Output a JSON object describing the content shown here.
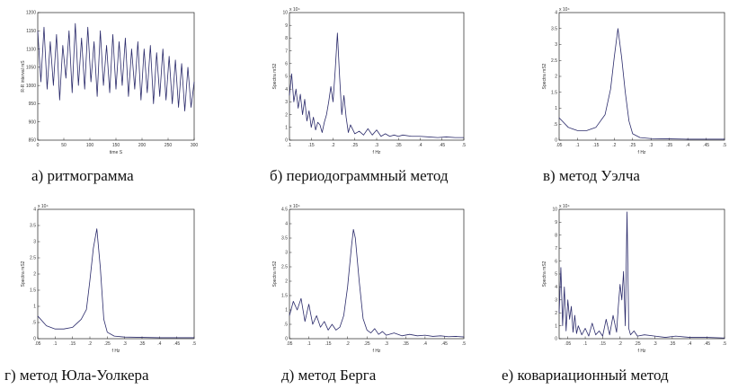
{
  "figure": {
    "captions": [
      "а) ритмограмма",
      "б) периодограммный метод",
      "в) метод Уэлча",
      "г) метод Юла-Уолкера",
      "д) метод Берга",
      "е) ковариационный метод"
    ]
  },
  "chart_data": [
    {
      "type": "line",
      "xlabel": "time S",
      "ylabel": "R-R interval mS",
      "xlim": [
        0,
        300
      ],
      "ylim": [
        850,
        1200
      ],
      "xticks": [
        0,
        50,
        100,
        150,
        200,
        250,
        300
      ],
      "yticks": [
        850,
        900,
        950,
        1000,
        1050,
        1100,
        1150,
        1200
      ],
      "exponent": "",
      "series": [
        {
          "x": [
            0,
            6,
            12,
            18,
            24,
            30,
            36,
            42,
            48,
            54,
            60,
            66,
            72,
            78,
            84,
            90,
            96,
            102,
            108,
            114,
            120,
            126,
            132,
            138,
            144,
            150,
            156,
            162,
            168,
            174,
            180,
            186,
            192,
            198,
            204,
            210,
            216,
            222,
            228,
            234,
            240,
            246,
            252,
            258,
            264,
            270,
            276,
            282,
            288,
            294,
            300
          ],
          "values": [
            1150,
            1010,
            1160,
            990,
            1120,
            1000,
            1140,
            960,
            1110,
            1020,
            1150,
            980,
            1170,
            1000,
            1130,
            990,
            1160,
            1010,
            1120,
            970,
            1150,
            1000,
            1110,
            980,
            1140,
            990,
            1120,
            1000,
            1130,
            970,
            1100,
            990,
            1120,
            960,
            1100,
            980,
            1110,
            950,
            1090,
            970,
            1100,
            960,
            1080,
            950,
            1070,
            940,
            1060,
            930,
            1050,
            940,
            1010
          ]
        }
      ]
    },
    {
      "type": "line",
      "xlabel": "f Hz",
      "ylabel": "Spectra mS2",
      "xlim": [
        0.1,
        0.5
      ],
      "ylim": [
        0,
        10
      ],
      "xticks": [
        0.1,
        0.15,
        0.2,
        0.25,
        0.3,
        0.35,
        0.4,
        0.45,
        0.5
      ],
      "yticks": [
        0,
        1,
        2,
        3,
        4,
        5,
        6,
        7,
        8,
        9,
        10
      ],
      "exponent": "x 10⁴",
      "series": [
        {
          "x": [
            0.1,
            0.105,
            0.11,
            0.115,
            0.12,
            0.125,
            0.13,
            0.135,
            0.14,
            0.145,
            0.15,
            0.155,
            0.16,
            0.165,
            0.17,
            0.175,
            0.18,
            0.185,
            0.19,
            0.195,
            0.2,
            0.205,
            0.21,
            0.215,
            0.22,
            0.225,
            0.23,
            0.235,
            0.24,
            0.25,
            0.26,
            0.27,
            0.28,
            0.29,
            0.3,
            0.31,
            0.32,
            0.33,
            0.34,
            0.35,
            0.36,
            0.38,
            0.4,
            0.42,
            0.44,
            0.46,
            0.48,
            0.5
          ],
          "values": [
            3.5,
            5.2,
            3.0,
            4.0,
            2.5,
            3.6,
            2.0,
            3.2,
            1.5,
            2.3,
            1.0,
            1.8,
            0.8,
            1.4,
            1.2,
            0.6,
            1.4,
            2.0,
            3.0,
            4.2,
            3.0,
            5.5,
            8.4,
            5.0,
            2.0,
            3.5,
            1.8,
            0.6,
            1.2,
            0.5,
            0.7,
            0.4,
            0.9,
            0.4,
            0.8,
            0.3,
            0.5,
            0.3,
            0.4,
            0.3,
            0.4,
            0.3,
            0.3,
            0.25,
            0.2,
            0.25,
            0.2,
            0.2
          ]
        }
      ]
    },
    {
      "type": "line",
      "xlabel": "f Hz",
      "ylabel": "Spectra mS2",
      "xlim": [
        0.05,
        0.5
      ],
      "ylim": [
        0,
        4
      ],
      "xticks": [
        0.05,
        0.1,
        0.15,
        0.2,
        0.25,
        0.3,
        0.35,
        0.4,
        0.45,
        0.5
      ],
      "yticks": [
        0,
        0.5,
        1,
        1.5,
        2,
        2.5,
        3,
        3.5,
        4
      ],
      "exponent": "x 10⁴",
      "series": [
        {
          "x": [
            0.05,
            0.075,
            0.1,
            0.125,
            0.15,
            0.175,
            0.19,
            0.2,
            0.21,
            0.22,
            0.23,
            0.24,
            0.25,
            0.27,
            0.3,
            0.35,
            0.4,
            0.45,
            0.5
          ],
          "values": [
            0.7,
            0.4,
            0.3,
            0.3,
            0.4,
            0.8,
            1.6,
            2.6,
            3.5,
            2.6,
            1.5,
            0.6,
            0.2,
            0.08,
            0.05,
            0.04,
            0.03,
            0.03,
            0.03
          ]
        }
      ]
    },
    {
      "type": "line",
      "xlabel": "f Hz",
      "ylabel": "Spectra mS2",
      "xlim": [
        0.05,
        0.5
      ],
      "ylim": [
        0,
        4
      ],
      "xticks": [
        0.05,
        0.1,
        0.15,
        0.2,
        0.25,
        0.3,
        0.35,
        0.4,
        0.45,
        0.5
      ],
      "yticks": [
        0,
        0.5,
        1,
        1.5,
        2,
        2.5,
        3,
        3.5,
        4
      ],
      "exponent": "x 10⁴",
      "series": [
        {
          "x": [
            0.05,
            0.075,
            0.1,
            0.125,
            0.15,
            0.175,
            0.19,
            0.2,
            0.21,
            0.22,
            0.23,
            0.24,
            0.25,
            0.27,
            0.3,
            0.35,
            0.4,
            0.45,
            0.5
          ],
          "values": [
            0.7,
            0.4,
            0.3,
            0.3,
            0.35,
            0.6,
            0.9,
            1.8,
            2.8,
            3.4,
            2.2,
            0.6,
            0.2,
            0.08,
            0.05,
            0.04,
            0.03,
            0.03,
            0.03
          ]
        }
      ]
    },
    {
      "type": "line",
      "xlabel": "f Hz",
      "ylabel": "Spectra mS2",
      "xlim": [
        0.05,
        0.5
      ],
      "ylim": [
        0,
        4.5
      ],
      "xticks": [
        0.05,
        0.1,
        0.15,
        0.2,
        0.25,
        0.3,
        0.35,
        0.4,
        0.45,
        0.5
      ],
      "yticks": [
        0,
        0.5,
        1,
        1.5,
        2,
        2.5,
        3,
        3.5,
        4,
        4.5
      ],
      "exponent": "x 10⁴",
      "series": [
        {
          "x": [
            0.05,
            0.06,
            0.07,
            0.08,
            0.09,
            0.1,
            0.11,
            0.12,
            0.13,
            0.14,
            0.15,
            0.16,
            0.17,
            0.18,
            0.19,
            0.2,
            0.21,
            0.215,
            0.22,
            0.23,
            0.24,
            0.25,
            0.26,
            0.27,
            0.28,
            0.29,
            0.3,
            0.32,
            0.34,
            0.36,
            0.38,
            0.4,
            0.42,
            0.44,
            0.46,
            0.48,
            0.5
          ],
          "values": [
            0.8,
            1.3,
            1.0,
            1.4,
            0.6,
            1.2,
            0.5,
            0.8,
            0.4,
            0.6,
            0.3,
            0.5,
            0.3,
            0.4,
            0.8,
            1.8,
            3.2,
            3.8,
            3.5,
            2.0,
            0.7,
            0.3,
            0.2,
            0.35,
            0.15,
            0.25,
            0.12,
            0.2,
            0.1,
            0.15,
            0.1,
            0.12,
            0.08,
            0.1,
            0.07,
            0.08,
            0.06
          ]
        }
      ]
    },
    {
      "type": "line",
      "xlabel": "f Hz",
      "ylabel": "Spectra mS2",
      "xlim": [
        0.025,
        0.5
      ],
      "ylim": [
        0,
        10
      ],
      "xticks": [
        0.05,
        0.1,
        0.15,
        0.2,
        0.25,
        0.3,
        0.35,
        0.4,
        0.45,
        0.5
      ],
      "yticks": [
        0,
        1,
        2,
        3,
        4,
        5,
        6,
        7,
        8,
        9,
        10
      ],
      "exponent": "x 10⁴",
      "series": [
        {
          "x": [
            0.025,
            0.03,
            0.035,
            0.04,
            0.045,
            0.05,
            0.055,
            0.06,
            0.065,
            0.07,
            0.075,
            0.08,
            0.09,
            0.1,
            0.11,
            0.12,
            0.13,
            0.14,
            0.15,
            0.16,
            0.17,
            0.18,
            0.19,
            0.195,
            0.2,
            0.205,
            0.21,
            0.215,
            0.22,
            0.225,
            0.23,
            0.24,
            0.25,
            0.27,
            0.3,
            0.33,
            0.36,
            0.4,
            0.45,
            0.5
          ],
          "values": [
            2.0,
            5.5,
            1.0,
            4.0,
            0.6,
            3.0,
            1.5,
            2.5,
            0.5,
            1.8,
            0.4,
            1.0,
            0.3,
            0.8,
            0.2,
            1.2,
            0.3,
            0.6,
            0.2,
            1.5,
            0.3,
            1.8,
            0.5,
            2.5,
            4.2,
            3.0,
            5.2,
            1.0,
            9.8,
            0.8,
            0.3,
            0.6,
            0.2,
            0.3,
            0.2,
            0.1,
            0.2,
            0.1,
            0.1,
            0.05
          ]
        }
      ]
    }
  ]
}
